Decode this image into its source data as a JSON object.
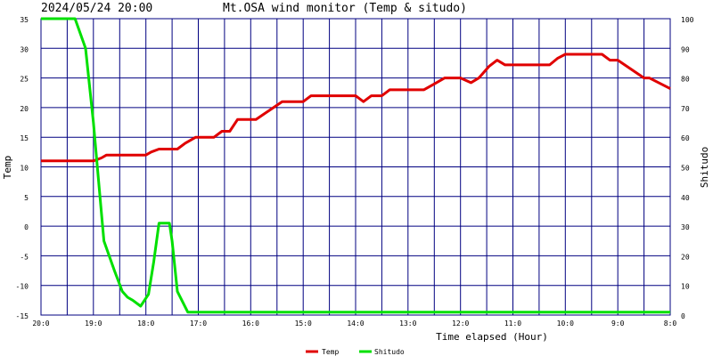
{
  "header": {
    "timestamp": "2024/05/24 20:00",
    "title": "Mt.OSA wind monitor (Temp & situdo)"
  },
  "colors": {
    "background": "#ffffff",
    "plot_background": "#ffffff",
    "grid": "#000080",
    "temp": "#e00000",
    "shitudo": "#00e000",
    "text": "#000000"
  },
  "chart_data": {
    "type": "line",
    "grid": true,
    "legend_position": "bottom-center",
    "x_label": "Time elapsed (Hour)",
    "x_ticks": [
      "20:0",
      "19:0",
      "18:0",
      "17:0",
      "16:0",
      "15:0",
      "14:0",
      "13:0",
      "12:0",
      "11:0",
      "10:0",
      "9:0",
      "8:0"
    ],
    "x_range": [
      0,
      12
    ],
    "y_left": {
      "label": "Temp",
      "range": [
        -15,
        35
      ],
      "ticks": [
        35,
        30,
        25,
        20,
        15,
        10,
        5,
        0,
        -5,
        -10,
        -15
      ]
    },
    "y_right": {
      "label": "Shitudo",
      "range": [
        0,
        100
      ],
      "ticks": [
        100,
        90,
        80,
        70,
        60,
        50,
        40,
        30,
        20,
        10,
        0
      ]
    },
    "series": [
      {
        "name": "Temp",
        "axis": "left",
        "points": [
          [
            0,
            11
          ],
          [
            1,
            11
          ],
          [
            1.15,
            11.5
          ],
          [
            1.25,
            12
          ],
          [
            2,
            12
          ],
          [
            2.1,
            12.5
          ],
          [
            2.25,
            13
          ],
          [
            2.6,
            13
          ],
          [
            2.75,
            14
          ],
          [
            2.95,
            15
          ],
          [
            3.3,
            15
          ],
          [
            3.45,
            16
          ],
          [
            3.6,
            16
          ],
          [
            3.75,
            18
          ],
          [
            4.1,
            18
          ],
          [
            4.35,
            19.5
          ],
          [
            4.6,
            21
          ],
          [
            5.0,
            21
          ],
          [
            5.15,
            22
          ],
          [
            6.0,
            22
          ],
          [
            6.15,
            21
          ],
          [
            6.3,
            22
          ],
          [
            6.5,
            22
          ],
          [
            6.65,
            23
          ],
          [
            7.3,
            23
          ],
          [
            7.5,
            24
          ],
          [
            7.7,
            25
          ],
          [
            8.0,
            25
          ],
          [
            8.2,
            24.2
          ],
          [
            8.35,
            25
          ],
          [
            8.55,
            27
          ],
          [
            8.7,
            28
          ],
          [
            8.85,
            27.2
          ],
          [
            9.7,
            27.2
          ],
          [
            9.85,
            28.3
          ],
          [
            10.0,
            29
          ],
          [
            10.7,
            29
          ],
          [
            10.85,
            28
          ],
          [
            11.0,
            28
          ],
          [
            11.25,
            26.5
          ],
          [
            11.5,
            25
          ],
          [
            11.6,
            25
          ],
          [
            12.0,
            23.2
          ]
        ]
      },
      {
        "name": "Shitudo",
        "axis": "right",
        "points": [
          [
            0,
            100
          ],
          [
            0.65,
            100
          ],
          [
            0.85,
            90
          ],
          [
            1.0,
            65
          ],
          [
            1.1,
            45
          ],
          [
            1.2,
            25
          ],
          [
            1.4,
            15
          ],
          [
            1.55,
            8
          ],
          [
            1.65,
            6
          ],
          [
            1.75,
            5
          ],
          [
            1.9,
            3
          ],
          [
            2.05,
            7
          ],
          [
            2.15,
            18
          ],
          [
            2.25,
            31
          ],
          [
            2.45,
            31
          ],
          [
            2.5,
            25
          ],
          [
            2.6,
            8
          ],
          [
            2.8,
            1
          ],
          [
            12.0,
            1
          ]
        ]
      }
    ]
  }
}
